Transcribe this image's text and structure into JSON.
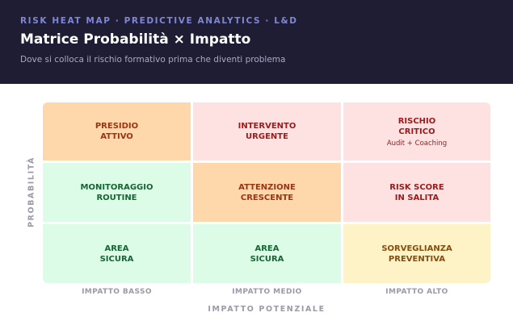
{
  "header": {
    "eyebrow": "RISK HEAT MAP · PREDICTIVE ANALYTICS · L&D",
    "title": "Matrice Probabilità × Impatto",
    "subtitle": "Dove si colloca il rischio formativo prima che diventi problema"
  },
  "axes": {
    "y_label": "PROBABILITÀ",
    "x_label": "IMPATTO POTENZIALE",
    "x_ticks": [
      "IMPATTO BASSO",
      "IMPATTO MEDIO",
      "IMPATTO ALTO"
    ]
  },
  "colors": {
    "orange": "#fed7aa",
    "red": "#fee2e2",
    "green": "#dcfce7",
    "yellow": "#fef3c7"
  },
  "matrix": {
    "rows": [
      {
        "cells": [
          {
            "label": "PRESIDIO\nATTIVO",
            "color": "orange"
          },
          {
            "label": "INTERVENTO\nURGENTE",
            "color": "red"
          },
          {
            "label": "RISCHIO\nCRITICO",
            "note": "Audit + Coaching",
            "color": "red"
          }
        ]
      },
      {
        "cells": [
          {
            "label": "MONITORAGGIO\nROUTINE",
            "color": "green"
          },
          {
            "label": "ATTENZIONE\nCRESCENTE",
            "color": "orange"
          },
          {
            "label": "RISK SCORE\nIN SALITA",
            "color": "red"
          }
        ]
      },
      {
        "cells": [
          {
            "label": "AREA\nSICURA",
            "color": "green"
          },
          {
            "label": "AREA\nSICURA",
            "color": "green"
          },
          {
            "label": "SORVEGLIANZA\nPREVENTIVA",
            "color": "yellow"
          }
        ]
      }
    ]
  }
}
